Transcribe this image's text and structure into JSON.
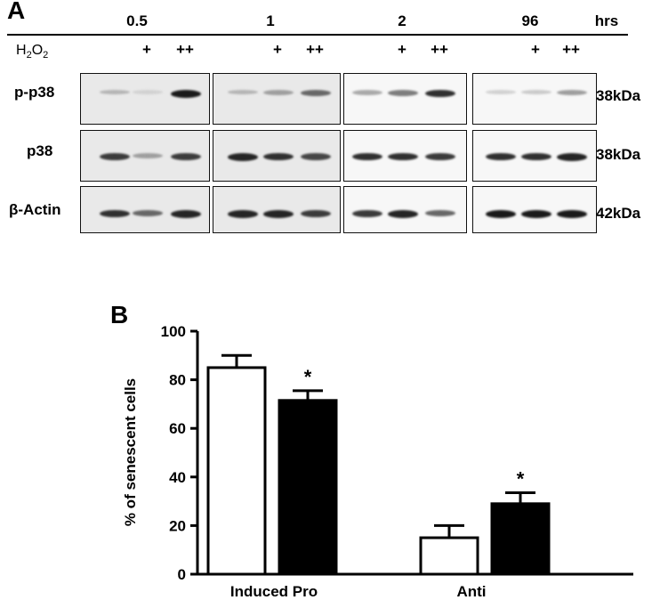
{
  "panel_a": {
    "letter": "A",
    "time_unit": "hrs",
    "timepoints": [
      "0.5",
      "1",
      "2",
      "96"
    ],
    "treatment_label_main": "H",
    "treatment_label_sub1": "2",
    "treatment_label_mid": "O",
    "treatment_label_sub2": "2",
    "lane_markers": [
      "",
      "+",
      "++"
    ],
    "rows": [
      {
        "label": "p-p38",
        "kda": "38kDa"
      },
      {
        "label": "p38",
        "kda": "38kDa"
      },
      {
        "label": "β-Actin",
        "kda": "42kDa"
      }
    ],
    "band_intensity": [
      [
        [
          0.25,
          0.12,
          0.95
        ],
        [
          0.25,
          0.35,
          0.6
        ],
        [
          0.3,
          0.5,
          0.85
        ],
        [
          0.12,
          0.15,
          0.35
        ]
      ],
      [
        [
          0.8,
          0.35,
          0.8
        ],
        [
          0.9,
          0.85,
          0.75
        ],
        [
          0.85,
          0.85,
          0.8
        ],
        [
          0.85,
          0.85,
          0.9
        ]
      ],
      [
        [
          0.85,
          0.6,
          0.9
        ],
        [
          0.9,
          0.9,
          0.8
        ],
        [
          0.8,
          0.9,
          0.6
        ],
        [
          0.95,
          0.95,
          0.95
        ]
      ]
    ]
  },
  "panel_b": {
    "letter": "B",
    "chart_data": {
      "type": "bar",
      "categories": [
        "Induced Pro",
        "Anti"
      ],
      "series": [
        {
          "values": [
            85,
            15
          ],
          "errors": [
            5,
            5
          ],
          "color": "#ffffff"
        },
        {
          "values": [
            71.5,
            29
          ],
          "errors": [
            4,
            4.5
          ],
          "color": "#000000"
        }
      ],
      "significance": [
        [
          "",
          "*"
        ],
        [
          "",
          "*"
        ]
      ],
      "ylabel": "% of senescent cells",
      "ylim": [
        0,
        100
      ],
      "yticks": [
        0,
        20,
        40,
        60,
        80,
        100
      ],
      "grid": false
    }
  }
}
